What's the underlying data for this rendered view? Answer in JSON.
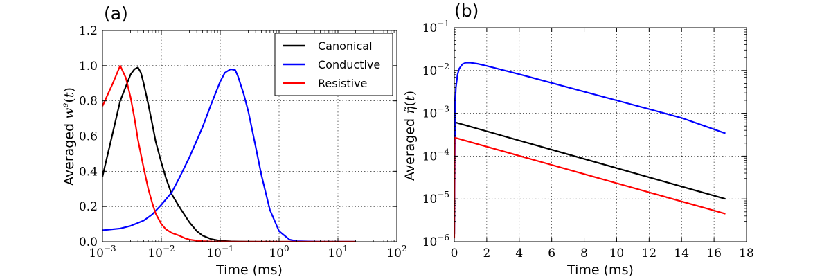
{
  "chart_data": [
    {
      "type": "line",
      "panel_label": "(a)",
      "xlabel": "Time (ms)",
      "ylabel": "Averaged w^e(t)",
      "x_scale": "log",
      "y_scale": "linear",
      "xlim": [
        0.001,
        100
      ],
      "ylim": [
        0,
        1.2
      ],
      "grid": true,
      "grid_style": "dotted",
      "x_ticks": [
        0.001,
        0.01,
        0.1,
        1,
        10,
        100
      ],
      "x_tick_labels": [
        {
          "base": "10",
          "exp": "−3"
        },
        {
          "base": "10",
          "exp": "−2"
        },
        {
          "base": "10",
          "exp": "−1"
        },
        {
          "base": "10",
          "exp": "0"
        },
        {
          "base": "10",
          "exp": "1"
        },
        {
          "base": "10",
          "exp": "2"
        }
      ],
      "y_ticks": [
        0,
        0.2,
        0.4,
        0.6,
        0.8,
        1.0,
        1.2
      ],
      "y_tick_labels": [
        "0.0",
        "0.2",
        "0.4",
        "0.6",
        "0.8",
        "1.0",
        "1.2"
      ],
      "legend": {
        "placement": "top-right",
        "entries": [
          "Canonical",
          "Conductive",
          "Resistive"
        ]
      },
      "series": [
        {
          "name": "Canonical",
          "color": "#000000",
          "x": [
            0.001,
            0.0015,
            0.002,
            0.003,
            0.0035,
            0.004,
            0.0045,
            0.005,
            0.006,
            0.007,
            0.008,
            0.01,
            0.012,
            0.015,
            0.02,
            0.03,
            0.04,
            0.05,
            0.07,
            0.1,
            0.15,
            0.2,
            0.3,
            1,
            20
          ],
          "y": [
            0.37,
            0.62,
            0.8,
            0.95,
            0.98,
            0.99,
            0.96,
            0.9,
            0.78,
            0.67,
            0.57,
            0.45,
            0.36,
            0.27,
            0.2,
            0.11,
            0.06,
            0.035,
            0.015,
            0.005,
            0.002,
            0.001,
            0.0005,
            0.0,
            0.0
          ]
        },
        {
          "name": "Conductive",
          "color": "#0000ff",
          "x": [
            0.001,
            0.002,
            0.003,
            0.005,
            0.007,
            0.01,
            0.015,
            0.02,
            0.03,
            0.05,
            0.07,
            0.1,
            0.12,
            0.15,
            0.18,
            0.2,
            0.25,
            0.3,
            0.4,
            0.5,
            0.7,
            1,
            1.5,
            2,
            5,
            20
          ],
          "y": [
            0.065,
            0.075,
            0.09,
            0.12,
            0.155,
            0.21,
            0.28,
            0.36,
            0.48,
            0.65,
            0.78,
            0.91,
            0.96,
            0.98,
            0.975,
            0.94,
            0.84,
            0.74,
            0.54,
            0.38,
            0.18,
            0.06,
            0.012,
            0.003,
            0.0,
            0.0
          ]
        },
        {
          "name": "Resistive",
          "color": "#ff0000",
          "x": [
            0.001,
            0.0015,
            0.002,
            0.0025,
            0.003,
            0.0035,
            0.004,
            0.005,
            0.006,
            0.007,
            0.008,
            0.01,
            0.012,
            0.015,
            0.02,
            0.025,
            0.03,
            0.04,
            0.05,
            0.07,
            0.1,
            0.2,
            1,
            20
          ],
          "y": [
            0.77,
            0.9,
            1.0,
            0.93,
            0.82,
            0.7,
            0.58,
            0.42,
            0.3,
            0.22,
            0.16,
            0.1,
            0.07,
            0.05,
            0.035,
            0.02,
            0.012,
            0.006,
            0.003,
            0.001,
            0.0005,
            0.0,
            0.0,
            0.0
          ]
        }
      ]
    },
    {
      "type": "line",
      "panel_label": "(b)",
      "xlabel": "Time (ms)",
      "ylabel": "Averaged η̃(t)",
      "x_scale": "linear",
      "y_scale": "log",
      "xlim": [
        0,
        18
      ],
      "ylim": [
        1e-06,
        0.1
      ],
      "grid": true,
      "grid_style": "dotted",
      "x_ticks": [
        0,
        2,
        4,
        6,
        8,
        10,
        12,
        14,
        16,
        18
      ],
      "x_tick_labels": [
        "0",
        "2",
        "4",
        "6",
        "8",
        "10",
        "12",
        "14",
        "16",
        "18"
      ],
      "y_ticks": [
        1e-06,
        1e-05,
        0.0001,
        0.001,
        0.01,
        0.1
      ],
      "y_tick_labels": [
        {
          "base": "10",
          "exp": "−6"
        },
        {
          "base": "10",
          "exp": "−5"
        },
        {
          "base": "10",
          "exp": "−4"
        },
        {
          "base": "10",
          "exp": "−3"
        },
        {
          "base": "10",
          "exp": "−2"
        },
        {
          "base": "10",
          "exp": "−1"
        }
      ],
      "series": [
        {
          "name": "Canonical",
          "color": "#000000",
          "x": [
            0.0,
            0.02,
            16.7
          ],
          "y": [
            1.5e-06,
            0.00062,
            1e-05
          ]
        },
        {
          "name": "Conductive",
          "color": "#0000ff",
          "x": [
            0.0,
            0.05,
            0.1,
            0.2,
            0.3,
            0.5,
            0.7,
            1.0,
            1.5,
            2.0,
            4.0,
            6.0,
            8.0,
            10.0,
            12.0,
            14.0,
            16.7
          ],
          "y": [
            1.5e-06,
            0.0015,
            0.004,
            0.008,
            0.011,
            0.014,
            0.0152,
            0.0152,
            0.0142,
            0.0128,
            0.0082,
            0.0051,
            0.0032,
            0.002,
            0.00125,
            0.00078,
            0.00034
          ]
        },
        {
          "name": "Resistive",
          "color": "#ff0000",
          "x": [
            0.0,
            0.02,
            16.7
          ],
          "y": [
            1.2e-06,
            0.00027,
            4.5e-06
          ]
        }
      ]
    }
  ]
}
